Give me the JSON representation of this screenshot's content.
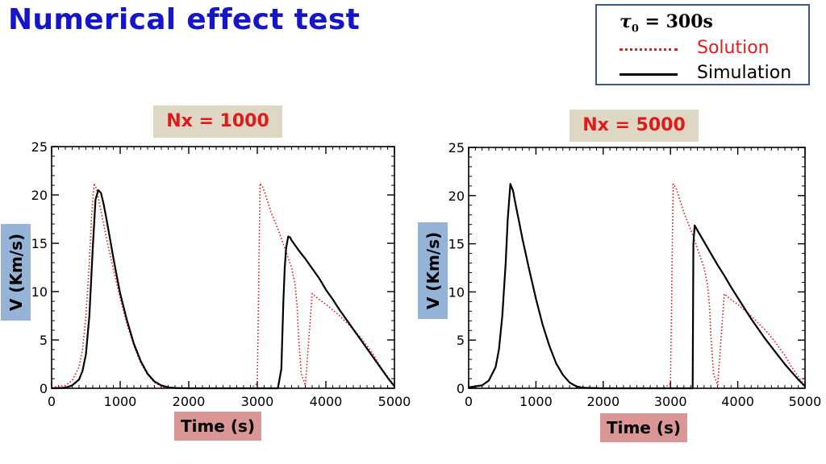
{
  "slide": {
    "title": "Numerical effect test"
  },
  "legend": {
    "tau_symbol": "τ",
    "tau_subscript": "0",
    "tau_value": " = 300s",
    "entries": [
      {
        "label": "Solution",
        "color": "#e02020",
        "style": "dotted"
      },
      {
        "label": "Simulation",
        "color": "#000000",
        "style": "solid"
      }
    ]
  },
  "panels": [
    {
      "label": "Nx = 1000",
      "xlabel": "Time (s)",
      "ylabel": "V (Km/s)"
    },
    {
      "label": "Nx = 5000",
      "xlabel": "Time (s)",
      "ylabel": "V (Km/s)"
    }
  ],
  "chart_data": [
    {
      "type": "line",
      "title": "Nx = 1000",
      "xlabel": "Time (s)",
      "ylabel": "V (Km/s)",
      "xlim": [
        0,
        5000
      ],
      "ylim": [
        0,
        25
      ],
      "xticks": [
        0,
        1000,
        2000,
        3000,
        4000,
        5000
      ],
      "yticks": [
        0,
        5,
        10,
        15,
        20,
        25
      ],
      "grid": false,
      "series": [
        {
          "name": "Solution",
          "color": "#e02020",
          "style": "dotted",
          "x": [
            0,
            200,
            300,
            400,
            450,
            500,
            550,
            580,
            620,
            660,
            700,
            750,
            800,
            900,
            1000,
            1100,
            1200,
            1300,
            1400,
            1500,
            1600,
            1700,
            2000,
            2500,
            2900,
            3000,
            3040,
            3080,
            3120,
            3160,
            3200,
            3300,
            3400,
            3500,
            3550,
            3580,
            3600,
            3640,
            3700,
            3800,
            3900,
            4000,
            4100,
            4200,
            4300,
            4400,
            4500,
            4600,
            4700,
            4800,
            4900,
            5000
          ],
          "y": [
            0.1,
            0.3,
            0.8,
            2.2,
            4,
            7.5,
            13,
            17.5,
            21.2,
            20.5,
            19,
            17.3,
            15.5,
            12.3,
            9.3,
            6.6,
            4.4,
            2.6,
            1.4,
            0.6,
            0.2,
            0.05,
            0,
            0,
            0,
            0.5,
            21.2,
            20.8,
            20,
            19.1,
            18.2,
            16.5,
            14.5,
            12.5,
            10.7,
            8.5,
            5.5,
            1.5,
            0.3,
            9.8,
            9.2,
            8.7,
            8.1,
            7.5,
            6.8,
            6.1,
            5.3,
            4.4,
            3.4,
            2.2,
            1.2,
            0.2
          ]
        },
        {
          "name": "Simulation",
          "color": "#000000",
          "style": "solid",
          "x": [
            0,
            200,
            300,
            400,
            450,
            500,
            550,
            600,
            640,
            680,
            720,
            760,
            800,
            850,
            900,
            950,
            1000,
            1100,
            1200,
            1300,
            1400,
            1500,
            1600,
            1700,
            1800,
            2000,
            2500,
            3000,
            3300,
            3350,
            3380,
            3400,
            3420,
            3450,
            3480,
            3500,
            3550,
            3600,
            3700,
            3800,
            3900,
            4000,
            4100,
            4200,
            4300,
            4400,
            4500,
            4600,
            4700,
            4800,
            4900,
            5000
          ],
          "y": [
            0,
            0.05,
            0.3,
            0.9,
            1.8,
            3.5,
            7.5,
            14.5,
            19.5,
            20.5,
            20.2,
            19,
            17.5,
            15.5,
            13.5,
            11.6,
            9.8,
            7,
            4.6,
            2.8,
            1.5,
            0.7,
            0.3,
            0.1,
            0.03,
            0,
            0,
            0,
            0,
            2,
            9,
            12.5,
            14.5,
            15.7,
            15.6,
            15.3,
            14.8,
            14.3,
            13.4,
            12.4,
            11.4,
            10.2,
            9.2,
            8.1,
            7.1,
            6.1,
            5.1,
            4.1,
            3.1,
            2.1,
            1.1,
            0.2
          ]
        }
      ]
    },
    {
      "type": "line",
      "title": "Nx = 5000",
      "xlabel": "Time (s)",
      "ylabel": "V (Km/s)",
      "xlim": [
        0,
        5000
      ],
      "ylim": [
        0,
        25
      ],
      "xticks": [
        0,
        1000,
        2000,
        3000,
        4000,
        5000
      ],
      "yticks": [
        0,
        5,
        10,
        15,
        20,
        25
      ],
      "grid": false,
      "series": [
        {
          "name": "Solution",
          "color": "#e02020",
          "style": "dotted",
          "x": [
            0,
            200,
            300,
            400,
            450,
            500,
            550,
            580,
            620,
            660,
            700,
            750,
            800,
            900,
            1000,
            1100,
            1200,
            1300,
            1400,
            1500,
            1600,
            1700,
            2000,
            2500,
            2900,
            3000,
            3040,
            3080,
            3120,
            3160,
            3200,
            3300,
            3400,
            3500,
            3550,
            3580,
            3600,
            3640,
            3700,
            3800,
            3900,
            4000,
            4100,
            4200,
            4300,
            4400,
            4500,
            4600,
            4700,
            4800,
            4900,
            5000
          ],
          "y": [
            0.1,
            0.3,
            0.8,
            2.2,
            4,
            7.5,
            13,
            17.5,
            21.2,
            20.5,
            19,
            17.3,
            15.5,
            12.3,
            9.3,
            6.6,
            4.4,
            2.6,
            1.4,
            0.6,
            0.2,
            0.05,
            0,
            0,
            0,
            0.5,
            21.2,
            20.8,
            20,
            19.1,
            18.2,
            16.5,
            14.5,
            12.5,
            10.7,
            8.5,
            5.5,
            1.5,
            0.3,
            9.8,
            9.2,
            8.7,
            8.1,
            7.5,
            6.8,
            6.1,
            5.3,
            4.4,
            3.4,
            2.2,
            1.2,
            0.2
          ]
        },
        {
          "name": "Simulation",
          "color": "#000000",
          "style": "solid",
          "x": [
            0,
            200,
            300,
            400,
            450,
            500,
            550,
            580,
            620,
            660,
            700,
            750,
            800,
            900,
            1000,
            1100,
            1200,
            1300,
            1400,
            1500,
            1600,
            1700,
            2000,
            2500,
            3000,
            3300,
            3330,
            3340,
            3360,
            3400,
            3500,
            3600,
            3700,
            3800,
            3900,
            4000,
            4100,
            4200,
            4300,
            4400,
            4500,
            4600,
            4700,
            4800,
            4900,
            5000
          ],
          "y": [
            0.1,
            0.3,
            0.8,
            2.2,
            4,
            7.5,
            13,
            17.5,
            21.2,
            20.5,
            19,
            17.3,
            15.5,
            12.3,
            9.3,
            6.6,
            4.4,
            2.6,
            1.4,
            0.6,
            0.2,
            0.05,
            0,
            0,
            0,
            0,
            0,
            15,
            16.9,
            16.4,
            15.2,
            14,
            12.8,
            11.7,
            10.5,
            9.4,
            8.3,
            7.2,
            6.2,
            5.2,
            4.3,
            3.4,
            2.5,
            1.7,
            0.9,
            0.2
          ]
        }
      ]
    }
  ]
}
